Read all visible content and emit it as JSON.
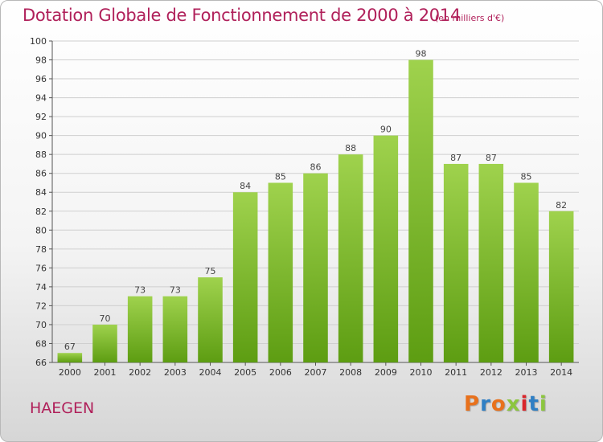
{
  "header": {
    "title": "Dotation Globale de Fonctionnement de 2000 à 2014",
    "subtitle": "(en milliers d'€)"
  },
  "footer": {
    "commune": "HAEGEN",
    "logo": "Proxiti"
  },
  "colors": {
    "title": "#b0205a",
    "bar_top": "#9fd24d",
    "bar_bottom": "#5d9d12",
    "grid": "#cfcfcf",
    "logo_letters": [
      "#e8711c",
      "#2f7fc4",
      "#e8711c",
      "#8cc63f",
      "#d9262b",
      "#2f7fc4",
      "#8cc63f"
    ]
  },
  "chart_data": {
    "type": "bar",
    "title": "Dotation Globale de Fonctionnement de 2000 à 2014",
    "subtitle": "(en milliers d'€)",
    "xlabel": "",
    "ylabel": "",
    "ylim": [
      66,
      100
    ],
    "ytick_step": 2,
    "grid": true,
    "categories": [
      "2000",
      "2001",
      "2002",
      "2003",
      "2004",
      "2005",
      "2006",
      "2007",
      "2008",
      "2009",
      "2010",
      "2011",
      "2012",
      "2013",
      "2014"
    ],
    "values": [
      67,
      70,
      73,
      73,
      75,
      84,
      85,
      86,
      88,
      90,
      98,
      87,
      87,
      85,
      82
    ]
  }
}
